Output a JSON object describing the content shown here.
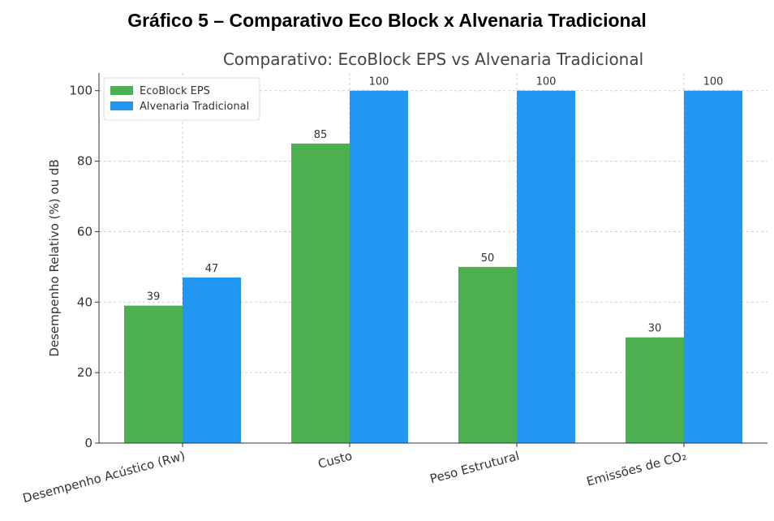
{
  "caption": "Gráfico 5 – Comparativo Eco Block x Alvenaria Tradicional",
  "chart_data": {
    "type": "bar",
    "title": "Comparativo: EcoBlock EPS vs Alvenaria Tradicional",
    "xlabel": "",
    "ylabel": "Desempenho Relativo (%) ou dB",
    "categories": [
      "Desempenho Acústico (Rw)",
      "Custo",
      "Peso Estrutural",
      "Emissões de CO₂"
    ],
    "series": [
      {
        "name": "EcoBlock EPS",
        "values": [
          39,
          85,
          50,
          30
        ],
        "color": "#4caf50"
      },
      {
        "name": "Alvenaria Tradicional",
        "values": [
          47,
          100,
          100,
          100
        ],
        "color": "#2196f3"
      }
    ],
    "ylim": [
      0,
      105
    ],
    "yticks": [
      0,
      20,
      40,
      60,
      80,
      100
    ],
    "grid": true,
    "legend_position": "top-left"
  }
}
